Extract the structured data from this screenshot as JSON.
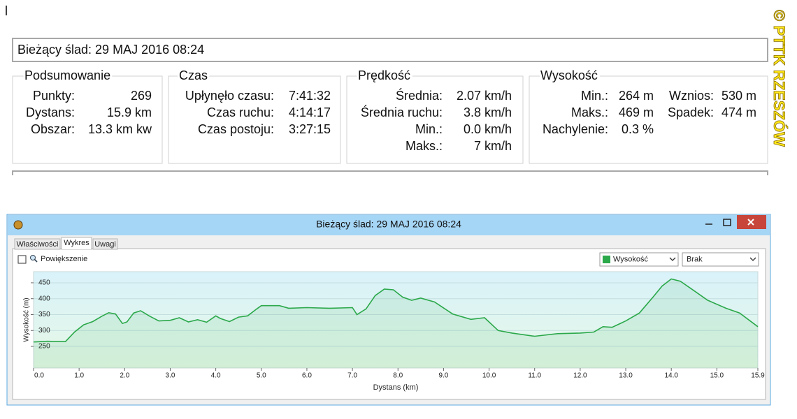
{
  "summary_title": "Bieżący ślad: 29 MAJ 2016 08:24",
  "groups": [
    {
      "title": "Podsumowanie",
      "columns": [
        [
          {
            "label": "Punkty:",
            "value": "269"
          },
          {
            "label": "Dystans:",
            "value": "15.9 km"
          },
          {
            "label": "Obszar:",
            "value": "13.3 km kw"
          }
        ]
      ]
    },
    {
      "title": "Czas",
      "columns": [
        [
          {
            "label": "Upłynęło czasu:",
            "value": "7:41:32"
          },
          {
            "label": "Czas ruchu:",
            "value": "4:14:17"
          },
          {
            "label": "Czas postoju:",
            "value": "3:27:15"
          }
        ]
      ]
    },
    {
      "title": "Prędkość",
      "columns": [
        [
          {
            "label": "Średnia:",
            "value": "2.07 km/h"
          },
          {
            "label": "Średnia ruchu:",
            "value": "3.8 km/h"
          },
          {
            "label": "Min.:",
            "value": "0.0 km/h"
          },
          {
            "label": "Maks.:",
            "value": "7 km/h"
          }
        ]
      ]
    },
    {
      "title": "Wysokość",
      "columns": [
        [
          {
            "label": "Min.:",
            "value": "264 m"
          },
          {
            "label": "Maks.:",
            "value": "469 m"
          },
          {
            "label": "Nachylenie:",
            "value": "0.3 %"
          }
        ],
        [
          {
            "label": "Wznios:",
            "value": "530 m"
          },
          {
            "label": "Spadek:",
            "value": "474 m"
          }
        ]
      ]
    }
  ],
  "watermark": "© PTTK RZESZÓW",
  "window": {
    "title": "Bieżący ślad: 29 MAJ 2016 08:24",
    "tabs": [
      "Właściwości",
      "Wykres",
      "Uwagi"
    ],
    "zoom_label": "Powiększenie",
    "second_series": "Brak"
  },
  "chart_data": {
    "type": "area",
    "x_label": "Dystans  (km)",
    "y_label": "Wysokość (m)",
    "x": [
      0,
      0.3,
      0.7,
      0.9,
      1.1,
      1.3,
      1.5,
      1.65,
      1.8,
      1.95,
      2.05,
      2.2,
      2.35,
      2.55,
      2.75,
      3.0,
      3.2,
      3.4,
      3.6,
      3.8,
      4.0,
      4.1,
      4.3,
      4.5,
      4.7,
      4.9,
      5.0,
      5.4,
      5.6,
      6.0,
      6.5,
      7.0,
      7.1,
      7.3,
      7.5,
      7.7,
      7.9,
      8.1,
      8.3,
      8.5,
      8.8,
      9.2,
      9.6,
      9.9,
      10.2,
      10.5,
      11.0,
      11.5,
      12.0,
      12.3,
      12.5,
      12.7,
      13.0,
      13.3,
      13.6,
      13.8,
      14.0,
      14.2,
      14.5,
      14.8,
      15.2,
      15.5,
      15.9
    ],
    "series": [
      {
        "name": "Wysokość",
        "color": "#2ba84a",
        "values": [
          264,
          266,
          265,
          295,
          318,
          328,
          345,
          356,
          352,
          322,
          327,
          355,
          362,
          345,
          330,
          332,
          340,
          327,
          334,
          326,
          346,
          338,
          328,
          342,
          346,
          368,
          378,
          378,
          370,
          372,
          370,
          372,
          350,
          368,
          410,
          430,
          428,
          405,
          395,
          402,
          390,
          352,
          335,
          340,
          300,
          292,
          282,
          290,
          292,
          295,
          312,
          310,
          330,
          355,
          405,
          440,
          462,
          455,
          425,
          395,
          370,
          355,
          312
        ]
      }
    ],
    "xlim": [
      0,
      15.9
    ],
    "xticks": [
      {
        "value": 0,
        "label": "0.0"
      },
      {
        "value": 1,
        "label": "1.0"
      },
      {
        "value": 2,
        "label": "2.0"
      },
      {
        "value": 3,
        "label": "3.0"
      },
      {
        "value": 4,
        "label": "4.0"
      },
      {
        "value": 5,
        "label": "5.0"
      },
      {
        "value": 6,
        "label": "6.0"
      },
      {
        "value": 7,
        "label": "7.0"
      },
      {
        "value": 8,
        "label": "8.0"
      },
      {
        "value": 9,
        "label": "9.0"
      },
      {
        "value": 10,
        "label": "10.0"
      },
      {
        "value": 11,
        "label": "11.0"
      },
      {
        "value": 12,
        "label": "12.0"
      },
      {
        "value": 13,
        "label": "13.0"
      },
      {
        "value": 14,
        "label": "14.0"
      },
      {
        "value": 15,
        "label": "15.0"
      },
      15.9
    ],
    "ylim": [
      182,
      485
    ],
    "yticks": [
      250,
      300,
      350,
      400,
      450
    ],
    "grid": true
  }
}
